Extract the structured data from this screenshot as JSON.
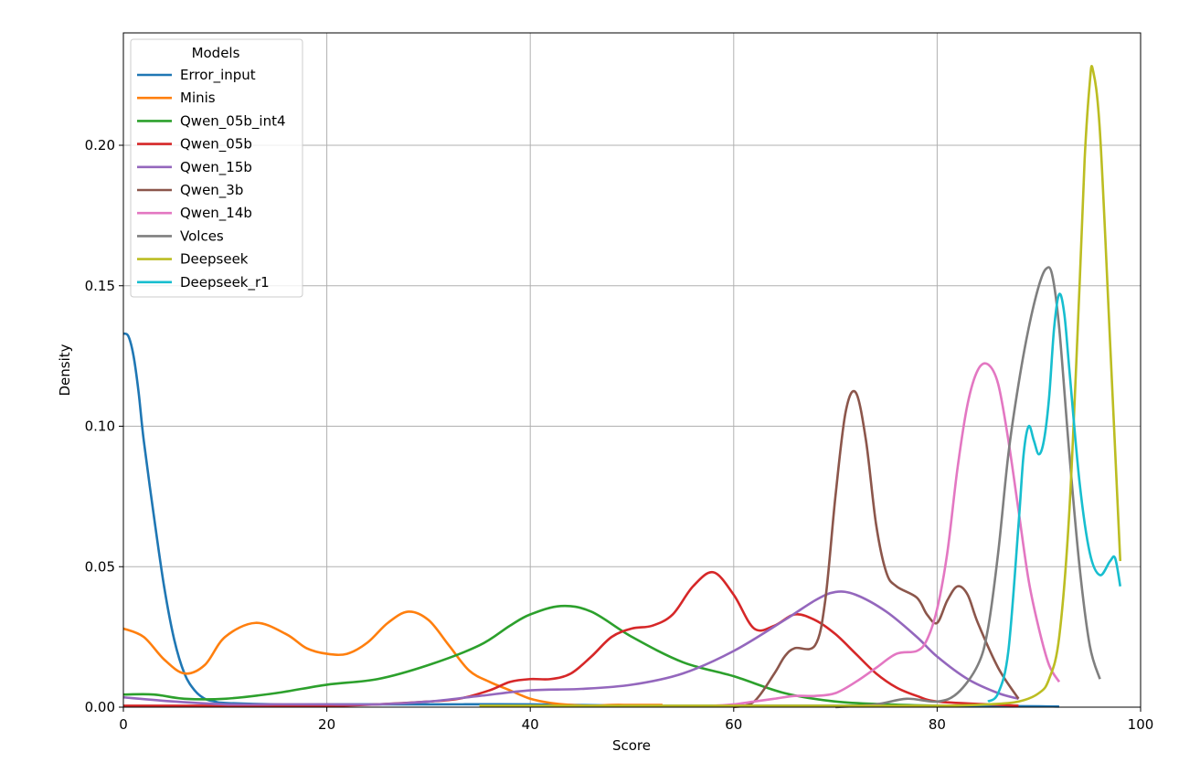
{
  "chart_data": {
    "type": "line",
    "title": "",
    "xlabel": "Score",
    "ylabel": "Density",
    "xlim": [
      0,
      100
    ],
    "ylim": [
      0,
      0.24
    ],
    "xticks": [
      0,
      20,
      40,
      60,
      80,
      100
    ],
    "xtick_labels": [
      "0",
      "20",
      "40",
      "60",
      "80",
      "100"
    ],
    "yticks": [
      0,
      0.05,
      0.1,
      0.15,
      0.2
    ],
    "ytick_labels": [
      "0.00",
      "0.05",
      "0.10",
      "0.15",
      "0.20"
    ],
    "grid": true,
    "legend": {
      "title": "Models",
      "placement": "top-left"
    },
    "series": [
      {
        "name": "Error_input",
        "color": "#1f77b4",
        "x": [
          0,
          0.5,
          1,
          1.5,
          2,
          3,
          4,
          5,
          6,
          7,
          8,
          9,
          10,
          15,
          20,
          30,
          40,
          50,
          60,
          70,
          80,
          90,
          92
        ],
        "y": [
          0.133,
          0.132,
          0.125,
          0.112,
          0.095,
          0.068,
          0.043,
          0.024,
          0.012,
          0.006,
          0.003,
          0.002,
          0.0015,
          0.001,
          0.001,
          0.001,
          0.001,
          0.0005,
          0.0005,
          0.0005,
          0.0005,
          0.0003,
          0.0002
        ]
      },
      {
        "name": "Minis",
        "color": "#ff7f0e",
        "x": [
          0,
          2,
          4,
          6,
          8,
          10,
          13,
          16,
          18,
          20,
          22,
          24,
          26,
          28,
          30,
          32,
          34,
          36,
          38,
          40,
          42,
          44,
          46,
          48,
          50,
          53
        ],
        "y": [
          0.028,
          0.025,
          0.017,
          0.012,
          0.015,
          0.025,
          0.03,
          0.026,
          0.021,
          0.019,
          0.019,
          0.023,
          0.03,
          0.034,
          0.031,
          0.022,
          0.013,
          0.009,
          0.006,
          0.003,
          0.0015,
          0.0008,
          0.0005,
          0.0008,
          0.0008,
          0.0008
        ]
      },
      {
        "name": "Qwen_05b_int4",
        "color": "#2ca02c",
        "x": [
          0,
          3,
          6,
          10,
          15,
          20,
          25,
          30,
          35,
          38,
          40,
          43,
          46,
          50,
          55,
          60,
          65,
          70,
          75,
          80
        ],
        "y": [
          0.0045,
          0.0045,
          0.003,
          0.003,
          0.005,
          0.008,
          0.01,
          0.015,
          0.022,
          0.029,
          0.033,
          0.036,
          0.034,
          0.025,
          0.016,
          0.011,
          0.005,
          0.002,
          0.001,
          0.0005
        ]
      },
      {
        "name": "Qwen_05b",
        "color": "#d62728",
        "x": [
          0,
          10,
          20,
          25,
          30,
          33,
          36,
          38,
          40,
          42,
          44,
          46,
          48,
          50,
          52,
          54,
          56,
          58,
          60,
          62,
          64,
          66,
          68,
          70,
          72,
          74,
          76,
          78,
          80,
          85,
          88
        ],
        "y": [
          0.0005,
          0.0005,
          0.0005,
          0.001,
          0.002,
          0.003,
          0.006,
          0.009,
          0.01,
          0.01,
          0.012,
          0.018,
          0.025,
          0.028,
          0.029,
          0.033,
          0.043,
          0.048,
          0.04,
          0.028,
          0.029,
          0.033,
          0.031,
          0.026,
          0.019,
          0.012,
          0.007,
          0.004,
          0.002,
          0.001,
          0.0005
        ]
      },
      {
        "name": "Qwen_15b",
        "color": "#9467bd",
        "x": [
          0,
          5,
          10,
          15,
          20,
          25,
          30,
          35,
          40,
          45,
          50,
          55,
          60,
          65,
          68,
          70,
          72,
          75,
          78,
          80,
          83,
          86,
          88
        ],
        "y": [
          0.0035,
          0.002,
          0.001,
          0.001,
          0.001,
          0.001,
          0.002,
          0.004,
          0.006,
          0.0065,
          0.008,
          0.012,
          0.02,
          0.031,
          0.038,
          0.041,
          0.04,
          0.034,
          0.025,
          0.018,
          0.01,
          0.005,
          0.003
        ]
      },
      {
        "name": "Qwen_3b",
        "color": "#8c564b",
        "x": [
          60,
          62,
          64,
          65,
          66,
          68,
          69,
          70,
          71,
          72,
          73,
          74,
          75,
          76,
          78,
          79,
          80,
          81,
          82,
          83,
          84,
          86,
          88
        ],
        "y": [
          0.0,
          0.002,
          0.012,
          0.018,
          0.021,
          0.022,
          0.038,
          0.075,
          0.105,
          0.112,
          0.095,
          0.065,
          0.048,
          0.043,
          0.039,
          0.033,
          0.03,
          0.038,
          0.043,
          0.04,
          0.03,
          0.014,
          0.003
        ]
      },
      {
        "name": "Qwen_14b",
        "color": "#e377c2",
        "x": [
          58,
          60,
          62,
          64,
          66,
          68,
          70,
          72,
          74,
          76,
          78,
          79,
          80,
          81,
          82,
          83,
          84,
          85,
          86,
          87,
          88,
          89,
          90,
          91,
          92
        ],
        "y": [
          0.0005,
          0.001,
          0.002,
          0.003,
          0.004,
          0.004,
          0.005,
          0.009,
          0.014,
          0.019,
          0.02,
          0.024,
          0.035,
          0.055,
          0.085,
          0.108,
          0.12,
          0.122,
          0.115,
          0.095,
          0.07,
          0.045,
          0.028,
          0.015,
          0.009
        ]
      },
      {
        "name": "Volces",
        "color": "#7f7f7f",
        "x": [
          70,
          74,
          77,
          80,
          82,
          84,
          85,
          86,
          87,
          88,
          89,
          90,
          90.7,
          91.3,
          92,
          93,
          94,
          95,
          96
        ],
        "y": [
          0.0,
          0.001,
          0.003,
          0.002,
          0.005,
          0.015,
          0.028,
          0.055,
          0.09,
          0.115,
          0.135,
          0.15,
          0.156,
          0.154,
          0.135,
          0.09,
          0.05,
          0.022,
          0.01
        ]
      },
      {
        "name": "Deepseek",
        "color": "#bcbd22",
        "x": [
          35,
          50,
          60,
          70,
          80,
          85,
          88,
          90,
          91,
          92,
          93,
          94,
          94.5,
          95,
          95.3,
          96,
          97,
          98
        ],
        "y": [
          0.0005,
          0.0005,
          0.0005,
          0.0005,
          0.0005,
          0.001,
          0.002,
          0.005,
          0.01,
          0.025,
          0.07,
          0.15,
          0.195,
          0.222,
          0.227,
          0.205,
          0.13,
          0.052
        ]
      },
      {
        "name": "Deepseek_r1",
        "color": "#17becf",
        "x": [
          85,
          86,
          87,
          88,
          88.5,
          89,
          89.5,
          90,
          90.5,
          91,
          91.5,
          92,
          92.5,
          93,
          94,
          95,
          96,
          97,
          97.5,
          98
        ],
        "y": [
          0.002,
          0.005,
          0.02,
          0.065,
          0.09,
          0.1,
          0.095,
          0.09,
          0.095,
          0.11,
          0.135,
          0.147,
          0.14,
          0.12,
          0.08,
          0.055,
          0.047,
          0.052,
          0.053,
          0.043
        ]
      }
    ]
  }
}
